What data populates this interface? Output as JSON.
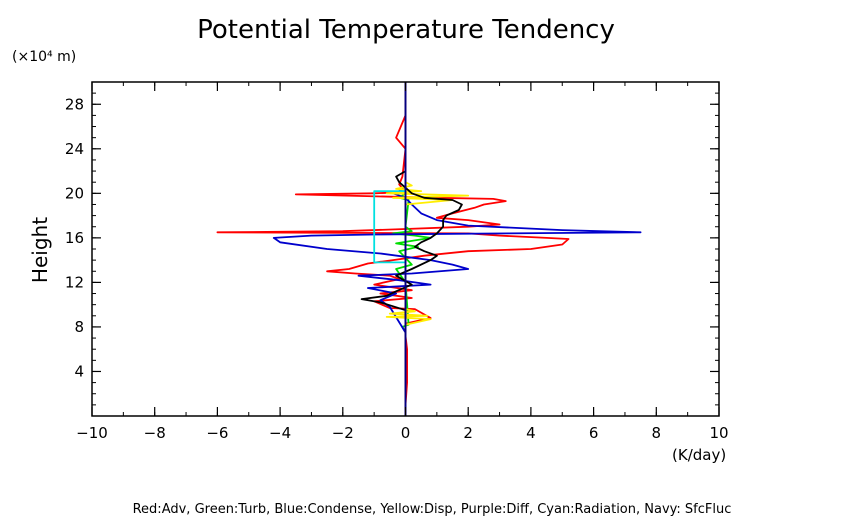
{
  "chart_data": {
    "type": "line",
    "title": "Potential Temperature Tendency",
    "ylabel": "Height",
    "yunit": "(×10⁴ m)",
    "xunit": "(K/day)",
    "xlim": [
      -10,
      10
    ],
    "ylim": [
      0,
      30
    ],
    "x_ticks": [
      -10,
      -8,
      -6,
      -4,
      -2,
      0,
      2,
      4,
      6,
      8,
      10
    ],
    "x_tick_labels": [
      "−10",
      "−8",
      "−6",
      "−4",
      "−2",
      "0",
      "2",
      "4",
      "6",
      "8",
      "10"
    ],
    "y_ticks": [
      4,
      8,
      12,
      16,
      20,
      24,
      28
    ],
    "y_tick_labels": [
      "4",
      "8",
      "12",
      "16",
      "20",
      "24",
      "28"
    ],
    "grid": false,
    "legend_text": "Red:Adv, Green:Turb, Blue:Condense, Yellow:Disp, Purple:Diff, Cyan:Radiation, Navy: SfcFluc",
    "series": [
      {
        "color": "#ff0000",
        "points": [
          [
            0,
            0
          ],
          [
            0,
            1
          ],
          [
            0.05,
            3
          ],
          [
            0.05,
            6
          ],
          [
            0,
            7.2
          ],
          [
            0,
            8.3
          ],
          [
            0.8,
            8.8
          ],
          [
            0.3,
            9.6
          ],
          [
            -0.5,
            9.7
          ],
          [
            -1,
            10.3
          ],
          [
            0.2,
            10.6
          ],
          [
            -0.8,
            11
          ],
          [
            0.2,
            11.3
          ],
          [
            -1,
            11.8
          ],
          [
            -0.2,
            12.3
          ],
          [
            -0.5,
            12.6
          ],
          [
            -1.6,
            12.8
          ],
          [
            -2.5,
            13
          ],
          [
            -1.8,
            13.2
          ],
          [
            -1.2,
            13.7
          ],
          [
            -0.4,
            14
          ],
          [
            0.6,
            14.4
          ],
          [
            2,
            14.8
          ],
          [
            4,
            15
          ],
          [
            5,
            15.4
          ],
          [
            5.2,
            15.9
          ],
          [
            4.5,
            16
          ],
          [
            3,
            16.2
          ],
          [
            2,
            16.4
          ],
          [
            -6.0,
            16.5
          ],
          [
            -2,
            16.6
          ],
          [
            0,
            16.8
          ],
          [
            2,
            17
          ],
          [
            3,
            17.2
          ],
          [
            2,
            17.6
          ],
          [
            1,
            17.8
          ],
          [
            1.5,
            18.2
          ],
          [
            2.2,
            18.7
          ],
          [
            2.5,
            19
          ],
          [
            3.2,
            19.3
          ],
          [
            2.8,
            19.5
          ],
          [
            1,
            19.6
          ],
          [
            -3.5,
            19.9
          ],
          [
            -1,
            20
          ],
          [
            0,
            20.1
          ],
          [
            -0.2,
            20.8
          ],
          [
            -0.1,
            21.5
          ],
          [
            0,
            24
          ],
          [
            -0.3,
            25
          ],
          [
            0,
            27
          ],
          [
            0,
            30
          ]
        ]
      },
      {
        "color": "#00dd00",
        "points": [
          [
            0,
            1
          ],
          [
            0,
            7.5
          ],
          [
            -0.1,
            8
          ],
          [
            0.1,
            8.2
          ],
          [
            0,
            12
          ],
          [
            -0.3,
            13.2
          ],
          [
            0.2,
            13.6
          ],
          [
            -0.2,
            14.8
          ],
          [
            0.4,
            15.2
          ],
          [
            -0.3,
            15.5
          ],
          [
            0.8,
            16
          ],
          [
            0.3,
            16.2
          ],
          [
            -0.4,
            16.4
          ],
          [
            0.2,
            16.6
          ],
          [
            0,
            17
          ],
          [
            0.1,
            19.4
          ],
          [
            -0.2,
            19.6
          ],
          [
            0,
            20
          ],
          [
            0,
            30
          ]
        ]
      },
      {
        "color": "#0000cc",
        "points": [
          [
            0,
            0
          ],
          [
            0,
            7.5
          ],
          [
            -0.5,
            9.8
          ],
          [
            -0.8,
            10.4
          ],
          [
            -0.3,
            11
          ],
          [
            -1.2,
            11.5
          ],
          [
            0.8,
            11.8
          ],
          [
            -0.2,
            12.2
          ],
          [
            -1.5,
            12.6
          ],
          [
            0.2,
            12.8
          ],
          [
            2,
            13.2
          ],
          [
            1.5,
            13.6
          ],
          [
            0.8,
            14
          ],
          [
            0,
            14.3
          ],
          [
            -0.8,
            14.6
          ],
          [
            -2.5,
            15
          ],
          [
            -4,
            15.6
          ],
          [
            -4.2,
            16
          ],
          [
            -3,
            16.2
          ],
          [
            -1,
            16.3
          ],
          [
            7.5,
            16.5
          ],
          [
            5,
            16.7
          ],
          [
            2,
            17.1
          ],
          [
            1,
            17.6
          ],
          [
            0.5,
            18.2
          ],
          [
            0.2,
            19
          ],
          [
            0,
            19.6
          ],
          [
            -0.4,
            20
          ],
          [
            0,
            20.4
          ],
          [
            0,
            30
          ]
        ]
      },
      {
        "color": "#ffee00",
        "points": [
          [
            0,
            1
          ],
          [
            0,
            8.2
          ],
          [
            0.8,
            8.7
          ],
          [
            -0.6,
            8.9
          ],
          [
            0.7,
            9
          ],
          [
            -0.5,
            9.2
          ],
          [
            0.3,
            9.4
          ],
          [
            0,
            9.6
          ],
          [
            0,
            19
          ],
          [
            1.5,
            19.4
          ],
          [
            -0.4,
            19.6
          ],
          [
            2,
            19.8
          ],
          [
            -0.6,
            20
          ],
          [
            0.5,
            20.2
          ],
          [
            -0.3,
            20.4
          ],
          [
            0.2,
            20.7
          ],
          [
            0,
            21
          ],
          [
            0,
            30
          ]
        ]
      },
      {
        "color": "#000000",
        "points": [
          [
            0,
            0
          ],
          [
            0,
            7.5
          ],
          [
            0,
            9.5
          ],
          [
            -0.8,
            10.2
          ],
          [
            -1.4,
            10.5
          ],
          [
            -0.6,
            10.8
          ],
          [
            -0.3,
            11.2
          ],
          [
            0.2,
            11.8
          ],
          [
            -0.3,
            12.6
          ],
          [
            0.2,
            13.2
          ],
          [
            0.8,
            14
          ],
          [
            1,
            14.4
          ],
          [
            0.6,
            14.8
          ],
          [
            0.3,
            15.2
          ],
          [
            0.5,
            15.6
          ],
          [
            0.8,
            16
          ],
          [
            1,
            16.4
          ],
          [
            1.2,
            17
          ],
          [
            1.2,
            17.6
          ],
          [
            1.3,
            18
          ],
          [
            1.7,
            18.5
          ],
          [
            1.8,
            19
          ],
          [
            1.5,
            19.4
          ],
          [
            0.6,
            19.6
          ],
          [
            0.2,
            20
          ],
          [
            -0.2,
            21
          ],
          [
            -0.3,
            21.5
          ],
          [
            0,
            22
          ],
          [
            0,
            24
          ],
          [
            0,
            30
          ]
        ]
      },
      {
        "color": "#800080",
        "points": [
          [
            0,
            0
          ],
          [
            0,
            30
          ]
        ]
      },
      {
        "color": "#00e0e0",
        "points": [
          [
            0,
            13.8
          ],
          [
            -1,
            13.8
          ],
          [
            -1,
            20.2
          ],
          [
            0,
            20.2
          ]
        ]
      },
      {
        "color": "#000080",
        "points": [
          [
            0,
            0
          ],
          [
            0,
            30
          ]
        ]
      }
    ]
  }
}
